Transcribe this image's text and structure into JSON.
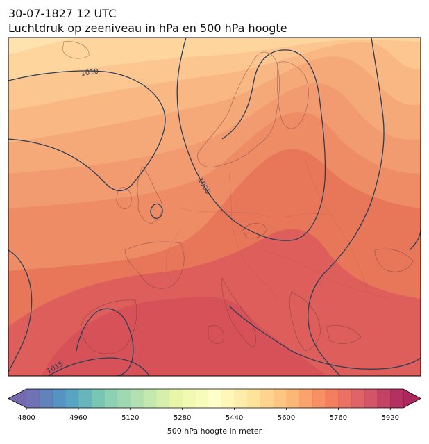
{
  "header": {
    "datetime": "30-07-1827 12 UTC",
    "subtitle": "Luchtdruk op zeeniveau in hPa en 500 hPa hoogte"
  },
  "chart_data": {
    "type": "contour map",
    "region": "Europe",
    "filled_field": "500 hPa geopotential height (m)",
    "filled_levels": [
      5600,
      5640,
      5680,
      5720,
      5760,
      5800,
      5840,
      5880,
      5920
    ],
    "isobar_labels": [
      "1010",
      "1020",
      "1015"
    ],
    "isobars_hpa": [
      1010,
      1015,
      1020
    ]
  },
  "colorbar": {
    "label": "500 hPa hoogte in meter",
    "min": 4800,
    "max": 5960,
    "step": 40,
    "ticks": [
      "4800",
      "4960",
      "5120",
      "5280",
      "5440",
      "5600",
      "5760",
      "5920"
    ],
    "tick_values": [
      4800,
      4960,
      5120,
      5280,
      5440,
      5600,
      5760,
      5920
    ],
    "colormap": [
      "#5e4fa2",
      "#3288bd",
      "#66c2a5",
      "#abdda4",
      "#e6f598",
      "#ffffbf",
      "#fee08b",
      "#fdae61",
      "#f46d43",
      "#d53e4f",
      "#9e0142"
    ]
  }
}
